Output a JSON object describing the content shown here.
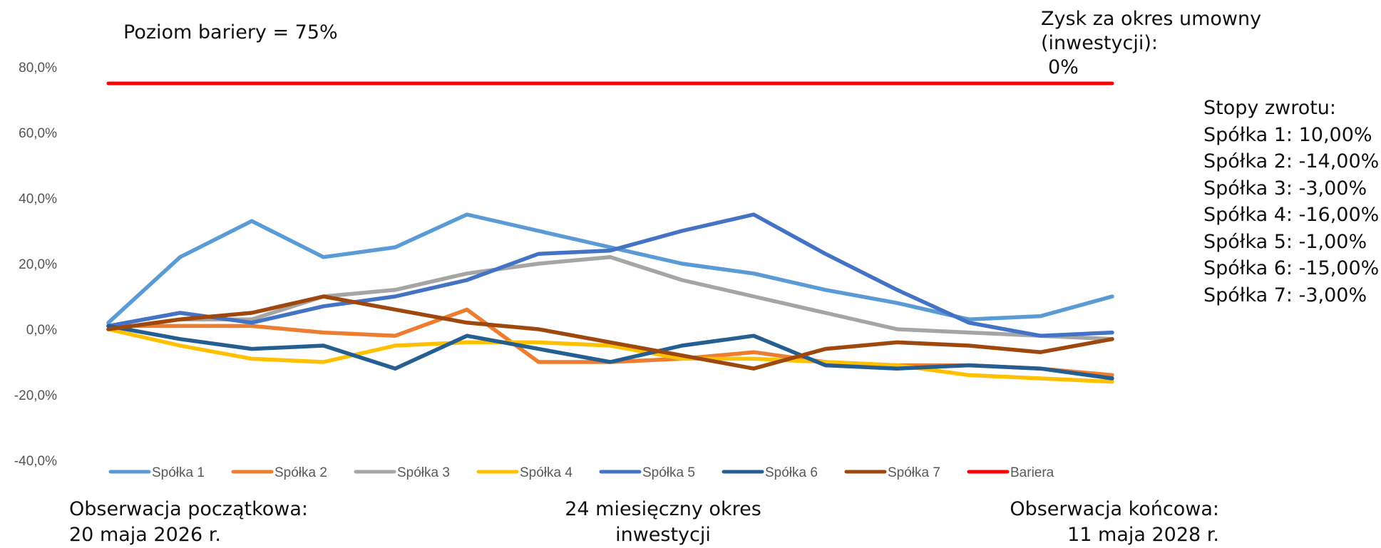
{
  "chart_data": {
    "type": "line",
    "x": [
      0,
      1,
      2,
      3,
      4,
      5,
      6,
      7,
      8,
      9,
      10,
      11,
      12,
      13,
      14
    ],
    "ylim": [
      -50,
      82
    ],
    "yticks": [
      -40,
      -20,
      0,
      20,
      40,
      60,
      80
    ],
    "ytick_labels": [
      "-40,0%",
      "-20,0%",
      "0,0%",
      "20,0%",
      "40,0%",
      "60,0%",
      "80,0%"
    ],
    "grid": false,
    "legend_position": "bottom",
    "series": [
      {
        "name": "Spółka 1",
        "color": "#5B9BD5",
        "values": [
          2,
          22,
          33,
          22,
          25,
          35,
          30,
          25,
          20,
          17,
          12,
          8,
          3,
          4,
          10
        ]
      },
      {
        "name": "Spółka 2",
        "color": "#ED7D31",
        "values": [
          1,
          1,
          1,
          -1,
          -2,
          6,
          -10,
          -10,
          -9,
          -7,
          -10,
          -11,
          -11,
          -12,
          -14
        ]
      },
      {
        "name": "Spółka 3",
        "color": "#A5A5A5",
        "values": [
          0,
          3,
          3,
          10,
          12,
          17,
          20,
          22,
          15,
          10,
          5,
          0,
          -1,
          -2,
          -3
        ]
      },
      {
        "name": "Spółka 4",
        "color": "#FFC000",
        "values": [
          0,
          -5,
          -9,
          -10,
          -5,
          -4,
          -4,
          -5,
          -9,
          -9,
          -10,
          -11,
          -14,
          -15,
          -16
        ]
      },
      {
        "name": "Spółka 5",
        "color": "#4472C4",
        "values": [
          1,
          5,
          2,
          7,
          10,
          15,
          23,
          24,
          30,
          35,
          23,
          12,
          2,
          -2,
          -1
        ]
      },
      {
        "name": "Spółka 6",
        "color": "#255E91",
        "values": [
          1,
          -3,
          -6,
          -5,
          -12,
          -2,
          -6,
          -10,
          -5,
          -2,
          -11,
          -12,
          -11,
          -12,
          -15
        ]
      },
      {
        "name": "Spółka 7",
        "color": "#9E480E",
        "values": [
          0,
          3,
          5,
          10,
          6,
          2,
          0,
          -4,
          -8,
          -12,
          -6,
          -4,
          -5,
          -7,
          -3
        ]
      },
      {
        "name": "Bariera",
        "color": "#FF0000",
        "values": [
          75,
          75,
          75,
          75,
          75,
          75,
          75,
          75,
          75,
          75,
          75,
          75,
          75,
          75,
          75
        ]
      }
    ]
  },
  "annotations": {
    "barrier_label": "Poziom bariery = 75%",
    "profit_label": "Zysk za okres umowny (inwestycji):",
    "profit_value": "0%",
    "returns_title": "Stopy zwrotu:",
    "returns": [
      "Spółka 1: 10,00%",
      "Spółka 2: -14,00%",
      "Spółka 3: -3,00%",
      "Spółka 4: -16,00%",
      "Spółka 5: -1,00%",
      "Spółka 6: -15,00%",
      "Spółka 7: -3,00%"
    ]
  },
  "footer": {
    "start_line1": "Obserwacja początkowa:",
    "start_line2": "20 maja 2026 r.",
    "period_line1": "24 miesięczny okres",
    "period_line2": "inwestycji",
    "end_line1": "Obserwacja  końcowa:",
    "end_line2": "11 maja 2028 r."
  }
}
